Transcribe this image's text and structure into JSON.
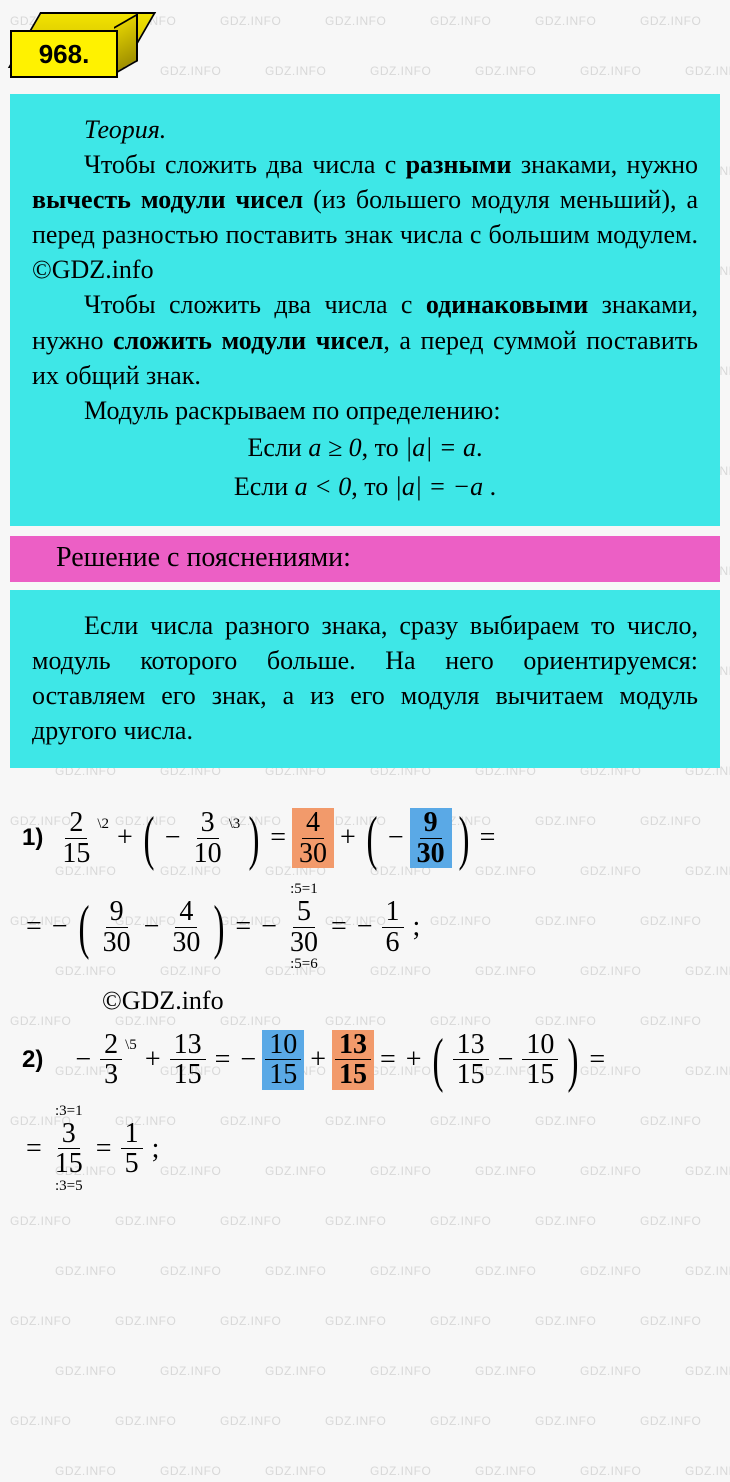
{
  "watermark_text": "GDZ.INFO",
  "badge": {
    "number": "968."
  },
  "colors": {
    "theory_bg": "#3ee7e7",
    "pink_bg": "#ec5fc5",
    "badge_yellow": "#fff200",
    "hl_orange": "#f29a6b",
    "hl_blue": "#5aa9e6",
    "page_bg": "#f7f7f7",
    "watermark": "#d8d8d8"
  },
  "theory": {
    "title": "Теория.",
    "para1_parts": {
      "t1": "Чтобы сложить два числа с ",
      "b1": "разными",
      "t2": " знаками, нужно ",
      "b2": "вычесть модули чисел",
      "t3": " (из большего модуля меньший), а перед разностью поставить знак числа с большим модулем. ©GDZ.info"
    },
    "para2_parts": {
      "t1": "Чтобы сложить два числа с ",
      "b1": "одинаковыми",
      "t2": " знаками, нужно ",
      "b2": "сложить модули чисел",
      "t3": ", а перед суммой поставить их общий знак."
    },
    "para3": "Модуль раскрываем по определению:",
    "f1": {
      "if": "Если  ",
      "cond": "a ≥ 0",
      "then": ", то  ",
      "res": "|a| = a",
      "end": "."
    },
    "f2": {
      "if": "Если  ",
      "cond": "a < 0",
      "then": ", то  ",
      "res": "|a| = −a",
      "end": " ."
    }
  },
  "solution_header": "Решение с пояснениями:",
  "intro": "Если числа разного знака, сразу выбираем то число, модуль которого больше. На него ориентируемся: оставляем его знак, а из его модуля вычитаем модуль другого числа.",
  "copyright": "©GDZ.info",
  "problems": {
    "p1": {
      "label": "1)",
      "f_2_15": {
        "n": "2",
        "d": "15",
        "sup": "\\2"
      },
      "f_3_10": {
        "n": "3",
        "d": "10",
        "sup": "\\3"
      },
      "f_4_30": {
        "n": "4",
        "d": "30"
      },
      "f_9_30": {
        "n": "9",
        "d": "30"
      },
      "f_9_30b": {
        "n": "9",
        "d": "30"
      },
      "f_4_30b": {
        "n": "4",
        "d": "30"
      },
      "f_5_30": {
        "n": "5",
        "d": "30",
        "top": ":5=1",
        "bot": ":5=6"
      },
      "f_1_6": {
        "n": "1",
        "d": "6"
      }
    },
    "p2": {
      "label": "2)",
      "f_2_3": {
        "n": "2",
        "d": "3",
        "sup": "\\5"
      },
      "f_13_15": {
        "n": "13",
        "d": "15"
      },
      "f_10_15": {
        "n": "10",
        "d": "15"
      },
      "f_13_15b": {
        "n": "13",
        "d": "15"
      },
      "f_13_15c": {
        "n": "13",
        "d": "15"
      },
      "f_10_15b": {
        "n": "10",
        "d": "15"
      },
      "f_3_15": {
        "n": "3",
        "d": "15",
        "top": ":3=1",
        "bot": ":3=5"
      },
      "f_1_5": {
        "n": "1",
        "d": "5"
      }
    }
  },
  "ops": {
    "plus": "+",
    "minus": "−",
    "eq": "=",
    "semi": ";",
    "lp": "(",
    "rp": ")"
  }
}
